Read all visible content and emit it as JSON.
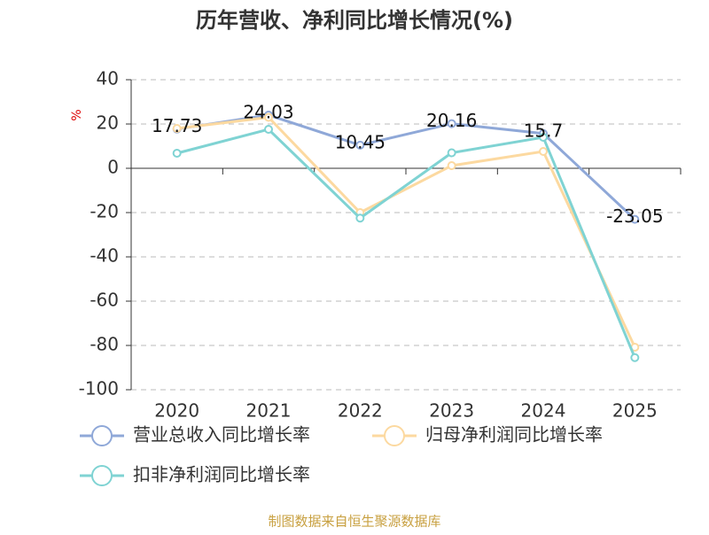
{
  "chart_data": {
    "type": "line",
    "title": "历年营收、净利同比增长情况(%)",
    "y_label": "%",
    "categories": [
      "2020",
      "2021",
      "2022",
      "2023",
      "2024",
      "2025"
    ],
    "series": [
      {
        "name": "营业总收入同比增长率",
        "color": "#8fa8d8",
        "values": [
          17.73,
          24.03,
          10.45,
          20.16,
          15.7,
          -23.05
        ],
        "show_labels": true
      },
      {
        "name": "归母净利润同比增长率",
        "color": "#fcd9a0",
        "values": [
          18,
          23,
          -20,
          1.2,
          7.6,
          -80.8
        ],
        "show_labels": false
      },
      {
        "name": "扣非净利润同比增长率",
        "color": "#7fd3d3",
        "values": [
          6.8,
          17.6,
          -22.5,
          7,
          14,
          -85.5
        ],
        "show_labels": false
      }
    ],
    "ylim": [
      -100,
      40
    ],
    "yticks": [
      -100,
      -80,
      -60,
      -40,
      -20,
      0,
      20,
      40
    ],
    "grid": true,
    "source": "制图数据来自恒生聚源数据库"
  }
}
